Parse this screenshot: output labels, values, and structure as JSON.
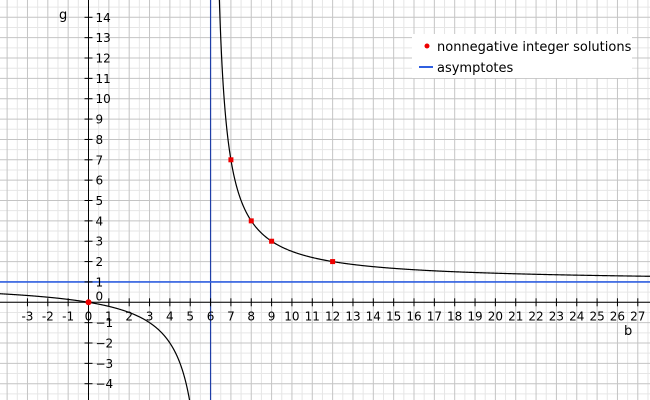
{
  "chart_data": {
    "type": "line",
    "title": "",
    "xlabel": "b",
    "ylabel": "g",
    "xlim": [
      -4.35,
      27.6
    ],
    "ylim": [
      -4.8,
      14.85
    ],
    "grid": true,
    "legend_position": "top-right",
    "x_ticks": [
      -3,
      -2,
      -1,
      0,
      1,
      2,
      3,
      4,
      5,
      6,
      7,
      8,
      9,
      10,
      11,
      12,
      13,
      14,
      15,
      16,
      17,
      18,
      19,
      20,
      21,
      22,
      23,
      24,
      25,
      26,
      27
    ],
    "y_ticks": [
      -4,
      -3,
      -2,
      -1,
      0,
      1,
      2,
      3,
      4,
      5,
      6,
      7,
      8,
      9,
      10,
      11,
      12,
      13,
      14
    ],
    "curve": {
      "formula": "g = b / (b - 6)",
      "color": "#000000"
    },
    "series": [
      {
        "name": "nonnegative integer solutions",
        "type": "scatter",
        "color": "#ee0000",
        "points": [
          {
            "x": 0,
            "y": 0
          },
          {
            "x": 7,
            "y": 7
          },
          {
            "x": 8,
            "y": 4
          },
          {
            "x": 9,
            "y": 3
          },
          {
            "x": 12,
            "y": 2
          }
        ]
      },
      {
        "name": "asymptotes",
        "type": "line",
        "color": "#2f5fe0",
        "vertical_x": 6,
        "horizontal_y": 1
      }
    ]
  }
}
